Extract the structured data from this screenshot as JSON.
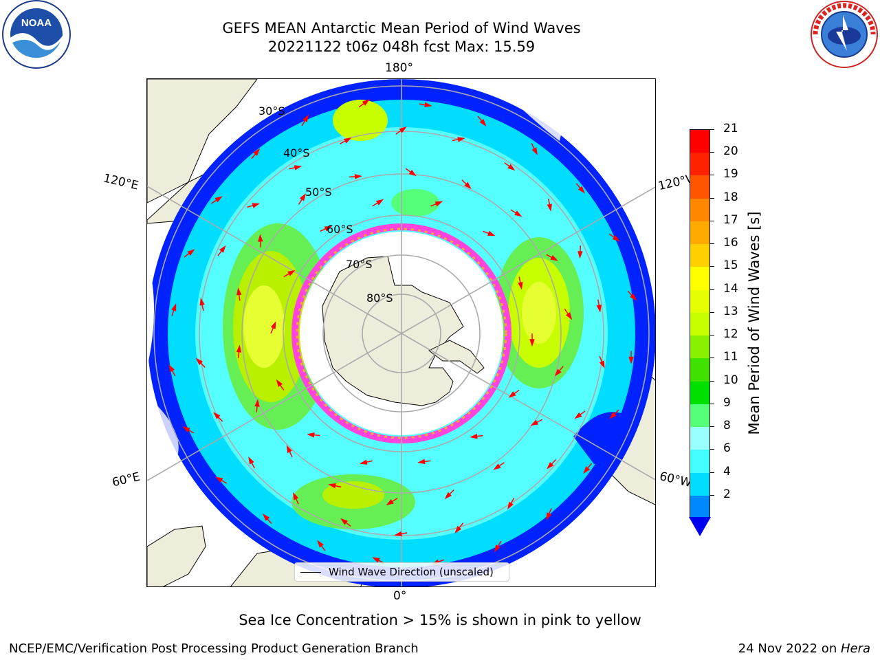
{
  "header": {
    "title_line1": "GEFS MEAN Antarctic Mean Period of Wind Waves",
    "title_line2": "20221122 t06z 048h fcst   Max: 15.59"
  },
  "logos": {
    "left": "noaa-logo",
    "right": "nws-logo"
  },
  "map": {
    "projection": "south-polar-stereographic",
    "longitude_labels": [
      "180°",
      "120°E",
      "120°W",
      "60°E",
      "60°W",
      "0°"
    ],
    "latitude_labels": [
      "30°S",
      "40°S",
      "50°S",
      "60°S",
      "70°S",
      "80°S"
    ],
    "legend": "Wind Wave Direction (unscaled)",
    "colors": {
      "land": "#eeeddc",
      "ice_edge": "#ff44dd",
      "arrow": "#ff0000"
    }
  },
  "colorbar": {
    "label": "Mean Period of Wind Waves [s]",
    "ticks": [
      "21",
      "20",
      "19",
      "18",
      "17",
      "16",
      "15",
      "14",
      "13",
      "12",
      "11",
      "10",
      "9",
      "8",
      "6",
      "4",
      "2"
    ],
    "colors": [
      "#ff0000",
      "#ff2200",
      "#ff5500",
      "#ff8800",
      "#ffaa00",
      "#ffd000",
      "#ffff00",
      "#e6ff00",
      "#c8ff00",
      "#88f000",
      "#40e000",
      "#00e000",
      "#55ff77",
      "#99ffff",
      "#44ffff",
      "#00ddff",
      "#0088ff",
      "#0000ee"
    ]
  },
  "caption": "Sea Ice Concentration > 15% is shown in pink to yellow",
  "footer": {
    "left": "NCEP/EMC/Verification Post Processing Product Generation Branch",
    "right_date": "24 Nov 2022 on ",
    "right_host": "Hera"
  }
}
